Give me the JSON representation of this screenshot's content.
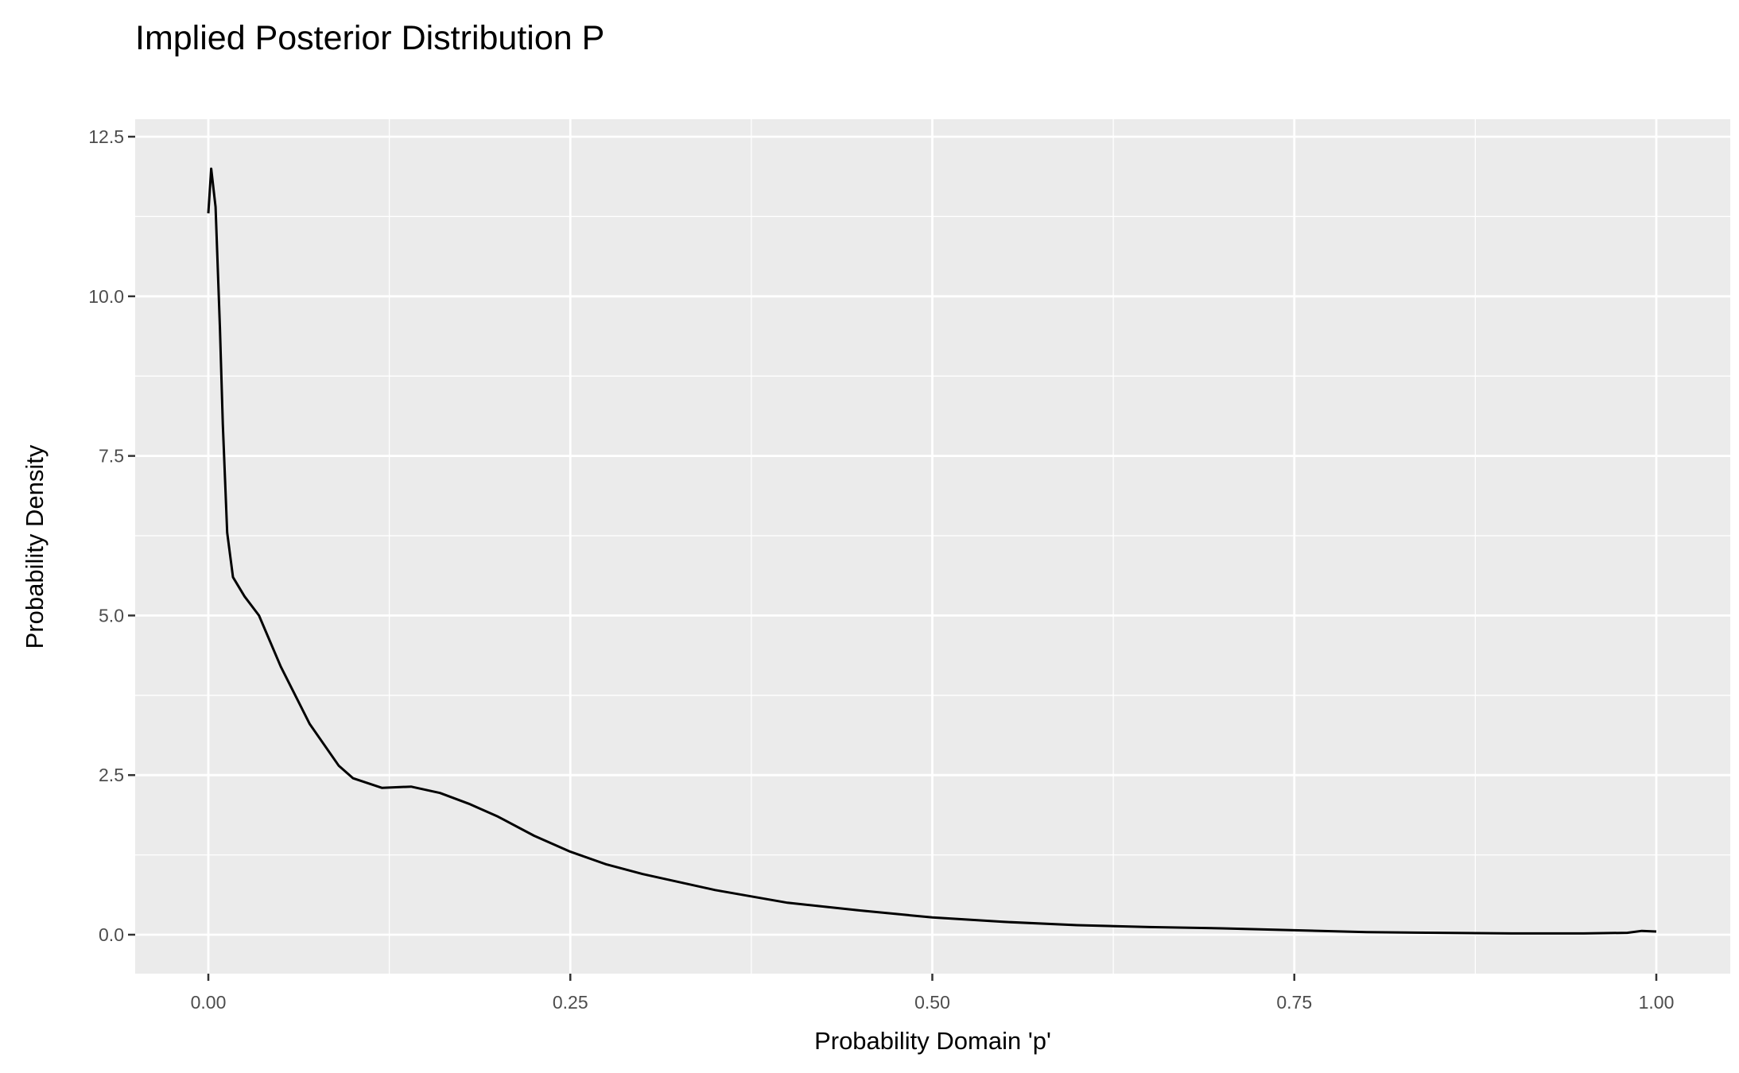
{
  "chart_data": {
    "type": "line",
    "title": "Implied Posterior Distribution P",
    "xlabel": "Probability Domain 'p'",
    "ylabel": "Probability Density",
    "xlim": [
      0,
      1
    ],
    "ylim": [
      0,
      12.5
    ],
    "xticks": [
      "0.00",
      "0.25",
      "0.50",
      "0.75",
      "1.00"
    ],
    "yticks": [
      "0.0",
      "2.5",
      "5.0",
      "7.5",
      "10.0",
      "12.5"
    ],
    "grid": true,
    "background": "#ebebeb",
    "line_color": "#000000",
    "x": [
      0,
      0.002,
      0.005,
      0.008,
      0.01,
      0.013,
      0.017,
      0.025,
      0.035,
      0.05,
      0.07,
      0.09,
      0.1,
      0.12,
      0.14,
      0.16,
      0.18,
      0.2,
      0.225,
      0.25,
      0.275,
      0.3,
      0.35,
      0.4,
      0.45,
      0.5,
      0.55,
      0.6,
      0.65,
      0.7,
      0.75,
      0.8,
      0.85,
      0.9,
      0.95,
      0.98,
      0.99,
      1.0
    ],
    "y": [
      11.3,
      12.0,
      11.4,
      9.5,
      8.0,
      6.3,
      5.6,
      5.3,
      5.0,
      4.2,
      3.3,
      2.65,
      2.45,
      2.3,
      2.32,
      2.22,
      2.05,
      1.85,
      1.55,
      1.3,
      1.1,
      0.95,
      0.7,
      0.5,
      0.38,
      0.27,
      0.2,
      0.15,
      0.12,
      0.1,
      0.07,
      0.04,
      0.03,
      0.02,
      0.02,
      0.03,
      0.06,
      0.05
    ]
  }
}
